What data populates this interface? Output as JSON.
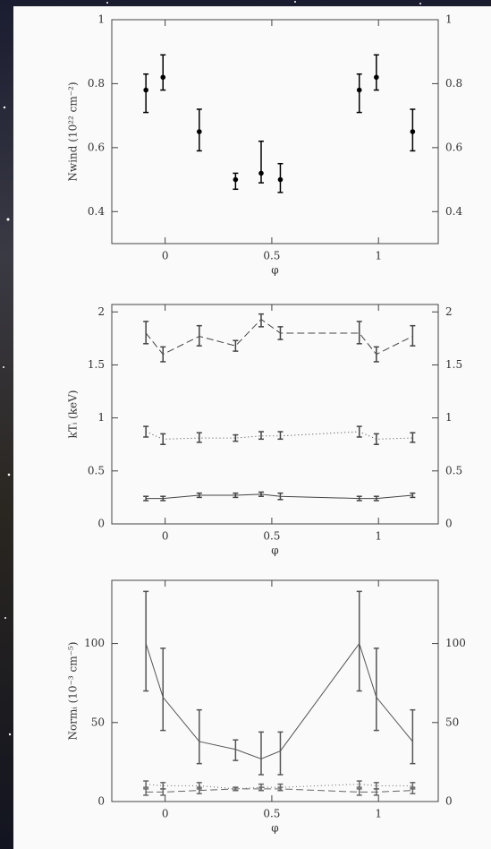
{
  "chart_data": [
    {
      "type": "line",
      "xlabel": "φ",
      "ylabel": "Nwind (10²² cm⁻²)",
      "x": [
        -0.09,
        -0.01,
        0.16,
        0.33,
        0.45,
        0.54,
        0.91,
        0.99,
        1.16
      ],
      "xlim": [
        -0.25,
        1.28
      ],
      "xticks": [
        0,
        0.5,
        1
      ],
      "ylim": [
        0.3,
        1
      ],
      "yticks": [
        0.4,
        0.6,
        0.8,
        1
      ],
      "series": [
        {
          "color": "#000000",
          "dash": "none",
          "marker": true,
          "connect": false,
          "values": [
            0.78,
            0.82,
            0.65,
            0.5,
            0.52,
            0.5,
            0.78,
            0.82,
            0.65
          ],
          "err_low": [
            0.71,
            0.78,
            0.59,
            0.47,
            0.49,
            0.46,
            0.71,
            0.78,
            0.59
          ],
          "err_high": [
            0.83,
            0.89,
            0.72,
            0.52,
            0.62,
            0.55,
            0.83,
            0.89,
            0.72
          ]
        }
      ]
    },
    {
      "type": "line",
      "xlabel": "φ",
      "ylabel": "kTᵢ (keV)",
      "x": [
        -0.09,
        -0.01,
        0.16,
        0.33,
        0.45,
        0.54,
        0.91,
        0.99,
        1.16
      ],
      "xlim": [
        -0.25,
        1.28
      ],
      "xticks": [
        0,
        0.5,
        1
      ],
      "ylim": [
        0,
        2.07
      ],
      "yticks": [
        0,
        0.5,
        1,
        1.5,
        2
      ],
      "series": [
        {
          "color": "#444444",
          "dash": "8 4",
          "marker": false,
          "connect": true,
          "values": [
            1.8,
            1.6,
            1.77,
            1.68,
            1.93,
            1.8,
            1.8,
            1.6,
            1.77
          ],
          "err_low": [
            1.7,
            1.53,
            1.68,
            1.63,
            1.86,
            1.74,
            1.7,
            1.53,
            1.68
          ],
          "err_high": [
            1.91,
            1.67,
            1.87,
            1.73,
            1.98,
            1.86,
            1.91,
            1.67,
            1.87
          ]
        },
        {
          "color": "#444444",
          "dash": "1 3",
          "marker": false,
          "connect": true,
          "values": [
            0.87,
            0.8,
            0.81,
            0.81,
            0.83,
            0.83,
            0.87,
            0.8,
            0.81
          ],
          "err_low": [
            0.82,
            0.75,
            0.77,
            0.78,
            0.8,
            0.8,
            0.82,
            0.75,
            0.77
          ],
          "err_high": [
            0.92,
            0.85,
            0.86,
            0.84,
            0.87,
            0.87,
            0.92,
            0.85,
            0.86
          ]
        },
        {
          "color": "#444444",
          "dash": "none",
          "marker": false,
          "connect": true,
          "values": [
            0.24,
            0.24,
            0.27,
            0.27,
            0.28,
            0.26,
            0.24,
            0.24,
            0.27
          ],
          "err_low": [
            0.22,
            0.22,
            0.25,
            0.25,
            0.26,
            0.23,
            0.22,
            0.22,
            0.25
          ],
          "err_high": [
            0.26,
            0.26,
            0.29,
            0.29,
            0.3,
            0.29,
            0.26,
            0.26,
            0.29
          ]
        }
      ]
    },
    {
      "type": "line",
      "xlabel": "φ",
      "ylabel": "Normᵢ (10⁻³ cm⁻⁵)",
      "x": [
        -0.09,
        -0.01,
        0.16,
        0.33,
        0.45,
        0.54,
        0.91,
        0.99,
        1.16
      ],
      "xlim": [
        -0.25,
        1.28
      ],
      "xticks": [
        0,
        0.5,
        1
      ],
      "ylim": [
        0,
        140
      ],
      "yticks": [
        0,
        50,
        100
      ],
      "series": [
        {
          "color": "#555555",
          "dash": "none",
          "marker": false,
          "connect": true,
          "values": [
            100,
            66,
            38,
            33,
            27,
            32,
            100,
            66,
            38
          ],
          "err_low": [
            70,
            45,
            24,
            26,
            17,
            17,
            70,
            45,
            24
          ],
          "err_high": [
            133,
            97,
            58,
            39,
            44,
            44,
            133,
            97,
            58
          ]
        },
        {
          "color": "#666666",
          "dash": "1 3",
          "marker": false,
          "connect": true,
          "values": [
            11,
            10,
            10,
            8,
            9,
            9,
            11,
            10,
            10
          ],
          "err_low": [
            9,
            8,
            8,
            7,
            7,
            7,
            9,
            8,
            8
          ],
          "err_high": [
            13,
            12,
            12,
            9,
            11,
            11,
            13,
            12,
            12
          ]
        },
        {
          "color": "#666666",
          "dash": "8 4",
          "marker": false,
          "connect": true,
          "values": [
            6,
            6,
            7,
            8,
            8,
            8,
            6,
            6,
            7
          ],
          "err_low": [
            4,
            4,
            5,
            7,
            7,
            7,
            4,
            4,
            5
          ],
          "err_high": [
            8,
            8,
            9,
            9,
            9,
            9,
            8,
            8,
            9
          ]
        }
      ]
    }
  ]
}
